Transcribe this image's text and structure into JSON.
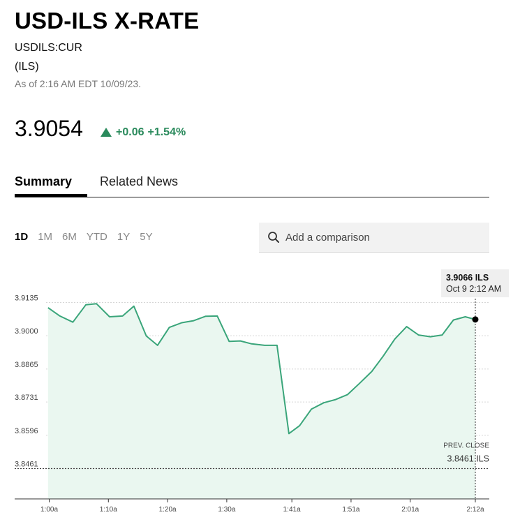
{
  "header": {
    "title": "USD-ILS X-RATE",
    "ticker": "USDILS:CUR",
    "currency": "(ILS)",
    "as_of": "As of 2:16 AM EDT 10/09/23."
  },
  "quote": {
    "price": "3.9054",
    "change": "+0.06",
    "change_pct": "+1.54%",
    "direction": "up",
    "up_color": "#2a8a5c"
  },
  "tabs": [
    {
      "label": "Summary",
      "active": true
    },
    {
      "label": "Related News",
      "active": false
    }
  ],
  "ranges": [
    "1D",
    "1M",
    "6M",
    "YTD",
    "1Y",
    "5Y"
  ],
  "active_range": "1D",
  "compare": {
    "placeholder": "Add a comparison",
    "icon": "search-icon"
  },
  "chart_data": {
    "type": "area",
    "x_unit": "minutes after 1:00 AM",
    "x_ticks": [
      "1:00a",
      "1:10a",
      "1:20a",
      "1:30a",
      "1:41a",
      "1:51a",
      "2:01a",
      "2:12a"
    ],
    "y_ticks": [
      "3.9135",
      "3.9000",
      "3.8865",
      "3.8731",
      "3.8596",
      "3.8461"
    ],
    "ylim": [
      3.8461,
      3.9135
    ],
    "grid": true,
    "line_color": "#3aa57a",
    "fill_color": "#eaf7f0",
    "series": [
      {
        "points": [
          [
            -0.2,
            3.9114
          ],
          [
            1.8,
            3.908
          ],
          [
            4.0,
            3.9055
          ],
          [
            6.2,
            3.9126
          ],
          [
            8.0,
            3.913
          ],
          [
            10.2,
            3.9077
          ],
          [
            12.4,
            3.908
          ],
          [
            14.3,
            3.912
          ],
          [
            16.4,
            3.8999
          ],
          [
            18.3,
            3.8961
          ],
          [
            20.3,
            3.9034
          ],
          [
            22.4,
            3.9053
          ],
          [
            24.4,
            3.9061
          ],
          [
            26.4,
            3.9079
          ],
          [
            28.4,
            3.908
          ],
          [
            30.4,
            3.8977
          ],
          [
            32.3,
            3.8979
          ],
          [
            34.2,
            3.8967
          ],
          [
            36.4,
            3.8961
          ],
          [
            38.5,
            3.8961
          ],
          [
            40.5,
            3.8603
          ],
          [
            42.3,
            3.8635
          ],
          [
            44.3,
            3.8702
          ],
          [
            46.4,
            3.8728
          ],
          [
            48.4,
            3.8741
          ],
          [
            50.4,
            3.8761
          ],
          [
            52.4,
            3.8806
          ],
          [
            54.5,
            3.8855
          ],
          [
            56.4,
            3.8916
          ],
          [
            58.4,
            3.8987
          ],
          [
            60.4,
            3.9037
          ],
          [
            62.4,
            3.9003
          ],
          [
            64.4,
            3.8996
          ],
          [
            66.4,
            3.9003
          ],
          [
            68.3,
            3.9064
          ],
          [
            70.3,
            3.9077
          ],
          [
            72.0,
            3.9066
          ]
        ]
      }
    ],
    "last_point": {
      "value": "3.9066 ILS",
      "time": "Oct 9 2:12 AM"
    },
    "prev_close": {
      "label": "PREV. CLOSE",
      "value": 3.8461,
      "display": "3.8461 ILS"
    }
  }
}
